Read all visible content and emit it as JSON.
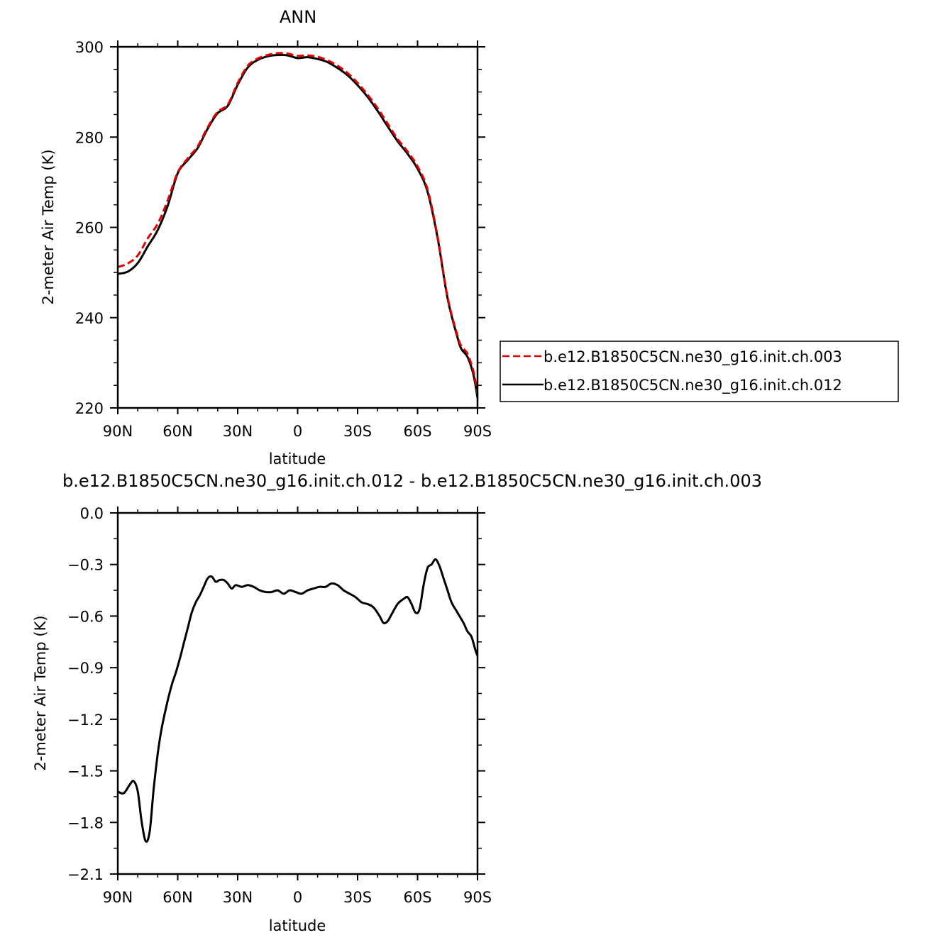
{
  "chart_data": [
    {
      "type": "line",
      "title": "ANN",
      "xlabel": "latitude",
      "ylabel": "2-meter Air Temp (K)",
      "xlim": [
        90,
        -90
      ],
      "ylim": [
        220,
        300
      ],
      "x_tick_labels": [
        "90N",
        "60N",
        "30N",
        "0",
        "30S",
        "60S",
        "90S"
      ],
      "y_tick_labels": [
        "220",
        "240",
        "260",
        "280",
        "300"
      ],
      "grid": false,
      "legend_position": "right",
      "series": [
        {
          "name": "b.e12.B1850C5CN.ne30_g16.init.ch.003",
          "color": "#e00000",
          "style": "dashed",
          "points": [
            [
              90,
              251.2
            ],
            [
              85,
              252
            ],
            [
              80,
              253.8
            ],
            [
              75,
              257.6
            ],
            [
              70,
              260.8
            ],
            [
              65,
              266
            ],
            [
              60,
              272.2
            ],
            [
              55,
              275.3
            ],
            [
              50,
              278
            ],
            [
              45,
              282.2
            ],
            [
              40,
              285.6
            ],
            [
              35,
              287.2
            ],
            [
              30,
              292
            ],
            [
              25,
              295.8
            ],
            [
              20,
              297.4
            ],
            [
              15,
              298.2
            ],
            [
              10,
              298.6
            ],
            [
              5,
              298.5
            ],
            [
              0,
              298
            ],
            [
              -5,
              298.1
            ],
            [
              -10,
              297.8
            ],
            [
              -15,
              297
            ],
            [
              -20,
              295.8
            ],
            [
              -25,
              294.2
            ],
            [
              -30,
              292
            ],
            [
              -35,
              289.4
            ],
            [
              -40,
              286.4
            ],
            [
              -45,
              283
            ],
            [
              -50,
              279.6
            ],
            [
              -55,
              276.8
            ],
            [
              -60,
              273.5
            ],
            [
              -65,
              268.4
            ],
            [
              -70,
              258
            ],
            [
              -75,
              244.6
            ],
            [
              -80,
              236
            ],
            [
              -82,
              233.6
            ],
            [
              -85,
              232
            ],
            [
              -88,
              228
            ],
            [
              -90,
              223
            ]
          ]
        },
        {
          "name": "b.e12.B1850C5CN.ne30_g16.init.ch.012",
          "color": "#000000",
          "style": "solid",
          "points": [
            [
              90,
              249.7
            ],
            [
              85,
              250.2
            ],
            [
              80,
              252.1
            ],
            [
              75,
              255.8
            ],
            [
              70,
              259.4
            ],
            [
              65,
              264.8
            ],
            [
              60,
              272
            ],
            [
              55,
              274.9
            ],
            [
              50,
              277.6
            ],
            [
              45,
              281.9
            ],
            [
              40,
              285.3
            ],
            [
              35,
              286.9
            ],
            [
              30,
              291.6
            ],
            [
              25,
              295.4
            ],
            [
              20,
              297.1
            ],
            [
              15,
              297.9
            ],
            [
              10,
              298.2
            ],
            [
              5,
              298.1
            ],
            [
              0,
              297.5
            ],
            [
              -5,
              297.7
            ],
            [
              -10,
              297.3
            ],
            [
              -15,
              296.6
            ],
            [
              -20,
              295.3
            ],
            [
              -25,
              293.7
            ],
            [
              -30,
              291.5
            ],
            [
              -35,
              288.9
            ],
            [
              -40,
              285.8
            ],
            [
              -45,
              282.4
            ],
            [
              -50,
              279.1
            ],
            [
              -55,
              276.3
            ],
            [
              -60,
              273
            ],
            [
              -65,
              267.9
            ],
            [
              -70,
              257.7
            ],
            [
              -75,
              244.3
            ],
            [
              -80,
              235.6
            ],
            [
              -82,
              233
            ],
            [
              -85,
              231.3
            ],
            [
              -88,
              227.3
            ],
            [
              -90,
              222.2
            ]
          ]
        }
      ]
    },
    {
      "type": "line",
      "title": "b.e12.B1850C5CN.ne30_g16.init.ch.012 - b.e12.B1850C5CN.ne30_g16.init.ch.003",
      "xlabel": "latitude",
      "ylabel": "2-meter Air Temp (K)",
      "xlim": [
        90,
        -90
      ],
      "ylim": [
        -2.1,
        0.0
      ],
      "x_tick_labels": [
        "90N",
        "60N",
        "30N",
        "0",
        "30S",
        "60S",
        "90S"
      ],
      "y_tick_labels": [
        "0.0",
        "−0.3",
        "−0.6",
        "−0.9",
        "−1.2",
        "−1.5",
        "−1.8",
        "−2.1"
      ],
      "grid": false,
      "series": [
        {
          "color": "#000000",
          "style": "solid",
          "points": [
            [
              90,
              -1.62
            ],
            [
              87,
              -1.63
            ],
            [
              84,
              -1.58
            ],
            [
              82,
              -1.56
            ],
            [
              80,
              -1.62
            ],
            [
              78,
              -1.8
            ],
            [
              76,
              -1.91
            ],
            [
              74,
              -1.85
            ],
            [
              72,
              -1.6
            ],
            [
              70,
              -1.4
            ],
            [
              68,
              -1.25
            ],
            [
              65,
              -1.09
            ],
            [
              63,
              -1.0
            ],
            [
              61,
              -0.93
            ],
            [
              59,
              -0.85
            ],
            [
              57,
              -0.76
            ],
            [
              55,
              -0.67
            ],
            [
              53,
              -0.58
            ],
            [
              51,
              -0.52
            ],
            [
              49,
              -0.48
            ],
            [
              47,
              -0.43
            ],
            [
              45,
              -0.38
            ],
            [
              43,
              -0.37
            ],
            [
              41,
              -0.4
            ],
            [
              39,
              -0.39
            ],
            [
              37,
              -0.39
            ],
            [
              35,
              -0.41
            ],
            [
              33,
              -0.44
            ],
            [
              31,
              -0.42
            ],
            [
              28,
              -0.43
            ],
            [
              25,
              -0.42
            ],
            [
              22,
              -0.43
            ],
            [
              19,
              -0.45
            ],
            [
              16,
              -0.46
            ],
            [
              13,
              -0.46
            ],
            [
              10,
              -0.45
            ],
            [
              7,
              -0.47
            ],
            [
              4,
              -0.45
            ],
            [
              1,
              -0.46
            ],
            [
              -2,
              -0.47
            ],
            [
              -5,
              -0.45
            ],
            [
              -8,
              -0.44
            ],
            [
              -11,
              -0.43
            ],
            [
              -14,
              -0.43
            ],
            [
              -17,
              -0.41
            ],
            [
              -20,
              -0.42
            ],
            [
              -23,
              -0.45
            ],
            [
              -26,
              -0.47
            ],
            [
              -29,
              -0.49
            ],
            [
              -32,
              -0.52
            ],
            [
              -35,
              -0.53
            ],
            [
              -38,
              -0.55
            ],
            [
              -41,
              -0.6
            ],
            [
              -43,
              -0.64
            ],
            [
              -45,
              -0.63
            ],
            [
              -47,
              -0.59
            ],
            [
              -50,
              -0.53
            ],
            [
              -53,
              -0.5
            ],
            [
              -55,
              -0.49
            ],
            [
              -57,
              -0.53
            ],
            [
              -59,
              -0.58
            ],
            [
              -61,
              -0.56
            ],
            [
              -63,
              -0.42
            ],
            [
              -65,
              -0.32
            ],
            [
              -67,
              -0.3
            ],
            [
              -69,
              -0.27
            ],
            [
              -71,
              -0.31
            ],
            [
              -73,
              -0.38
            ],
            [
              -75,
              -0.45
            ],
            [
              -77,
              -0.52
            ],
            [
              -80,
              -0.58
            ],
            [
              -83,
              -0.64
            ],
            [
              -85,
              -0.69
            ],
            [
              -87,
              -0.72
            ],
            [
              -89,
              -0.8
            ],
            [
              -90,
              -0.83
            ]
          ]
        }
      ]
    }
  ]
}
